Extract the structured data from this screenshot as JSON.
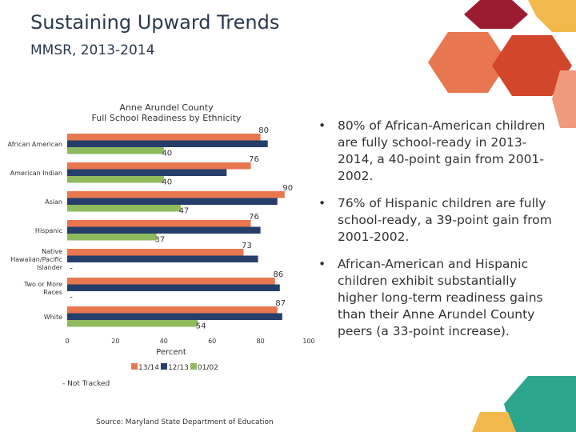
{
  "header": {
    "title": "Sustaining Upward Trends",
    "subtitle": "MMSR, 2013-2014"
  },
  "chart_data": {
    "type": "bar",
    "orientation": "horizontal",
    "title": [
      "Anne Arundel County",
      "Full School Readiness by Ethnicity"
    ],
    "categories": [
      "African American",
      "American Indian",
      "Asian",
      "Hispanic",
      "Native Hawaiian/Pacific Islander",
      "Two or More Races",
      "White"
    ],
    "series": [
      {
        "name": "13/14",
        "color": "#e8774f",
        "values": [
          80,
          76,
          90,
          76,
          73,
          86,
          87
        ]
      },
      {
        "name": "12/13",
        "color": "#263f6a",
        "values": [
          83,
          66,
          87,
          80,
          79,
          88,
          89
        ]
      },
      {
        "name": "01/02",
        "color": "#8fba5e",
        "values": [
          40,
          40,
          47,
          37,
          null,
          null,
          54
        ],
        "value_labels": [
          "40",
          "40",
          "47",
          "37",
          "-",
          "-",
          "54"
        ]
      }
    ],
    "xlim": [
      0,
      100
    ],
    "xticks": [
      0,
      20,
      40,
      60,
      80,
      100
    ],
    "xlabel": "Percent",
    "legend": "bottom",
    "note": "- Not Tracked",
    "source": "Source: Maryland State Department of Education"
  },
  "bullets": [
    "80% of African-American children are fully school-ready in 2013-2014, a 40-point gain from 2001-2002.",
    "76% of Hispanic children are fully school-ready, a 39-point gain from 2001-2002.",
    "African-American and Hispanic children exhibit substantially higher long-term readiness gains than their Anne Arundel County peers (a 33-point increase)."
  ]
}
